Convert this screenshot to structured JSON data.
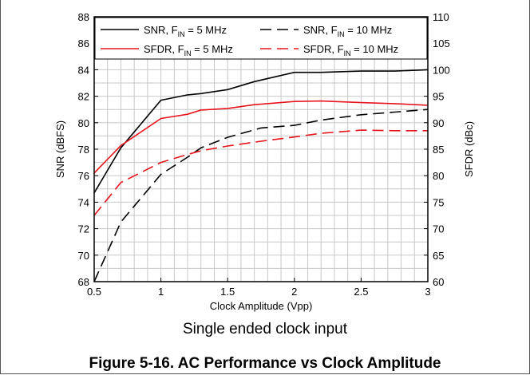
{
  "figure": {
    "caption": "Figure 5-16. AC Performance vs Clock Amplitude",
    "note": "Single ended clock input"
  },
  "colors": {
    "snr": "#000000",
    "sfdr": "#e8141c",
    "grid": "#c8c8c8"
  },
  "chart_data": {
    "type": "line",
    "xlabel": "Clock Amplitude (Vpp)",
    "ylabel": "SNR (dBFS)",
    "y2label": "SFDR (dBc)",
    "xlim": [
      0.5,
      3
    ],
    "ylim": [
      68,
      88
    ],
    "y2lim": [
      60,
      110
    ],
    "xticks": [
      "0.5",
      "1",
      "1.5",
      "2",
      "2.5",
      "3"
    ],
    "yticks": [
      "68",
      "70",
      "72",
      "74",
      "76",
      "78",
      "80",
      "82",
      "84",
      "86",
      "88"
    ],
    "y2ticks": [
      "60",
      "65",
      "70",
      "75",
      "80",
      "85",
      "90",
      "95",
      "100",
      "105",
      "110"
    ],
    "grid": true,
    "legend_position": "top",
    "series": [
      {
        "name": "SNR, F_IN = 5 MHz",
        "axis": "left",
        "color": "#000000",
        "dash": "solid",
        "x": [
          0.5,
          0.7,
          1.0,
          1.2,
          1.3,
          1.5,
          1.7,
          2.0,
          2.2,
          2.5,
          2.75,
          3.0
        ],
        "y": [
          74.7,
          78.1,
          81.7,
          82.1,
          82.2,
          82.5,
          83.1,
          83.8,
          83.8,
          83.9,
          83.9,
          84.0
        ]
      },
      {
        "name": "SFDR, F_IN = 5 MHz",
        "axis": "right",
        "color": "#e8141c",
        "dash": "solid",
        "x": [
          0.5,
          0.7,
          1.0,
          1.2,
          1.3,
          1.5,
          1.7,
          2.0,
          2.2,
          2.5,
          2.75,
          3.0
        ],
        "y": [
          80.5,
          85.7,
          90.8,
          91.6,
          92.4,
          92.7,
          93.4,
          94.0,
          94.1,
          93.8,
          93.6,
          93.3
        ]
      },
      {
        "name": "SNR, F_IN = 10 MHz",
        "axis": "left",
        "color": "#000000",
        "dash": "dashed",
        "x": [
          0.5,
          0.7,
          1.0,
          1.2,
          1.3,
          1.5,
          1.75,
          2.0,
          2.2,
          2.5,
          2.75,
          3.0
        ],
        "y": [
          68.0,
          72.5,
          76.1,
          77.4,
          78.1,
          78.9,
          79.6,
          79.8,
          80.2,
          80.6,
          80.8,
          81.0
        ]
      },
      {
        "name": "SFDR, F_IN = 10 MHz",
        "axis": "right",
        "color": "#e8141c",
        "dash": "dashed",
        "x": [
          0.5,
          0.7,
          1.0,
          1.2,
          1.3,
          1.5,
          1.75,
          2.0,
          2.2,
          2.5,
          2.75,
          3.0
        ],
        "y": [
          72.5,
          78.7,
          82.5,
          84.0,
          84.7,
          85.6,
          86.5,
          87.3,
          88.0,
          88.6,
          88.5,
          88.5
        ]
      }
    ]
  }
}
